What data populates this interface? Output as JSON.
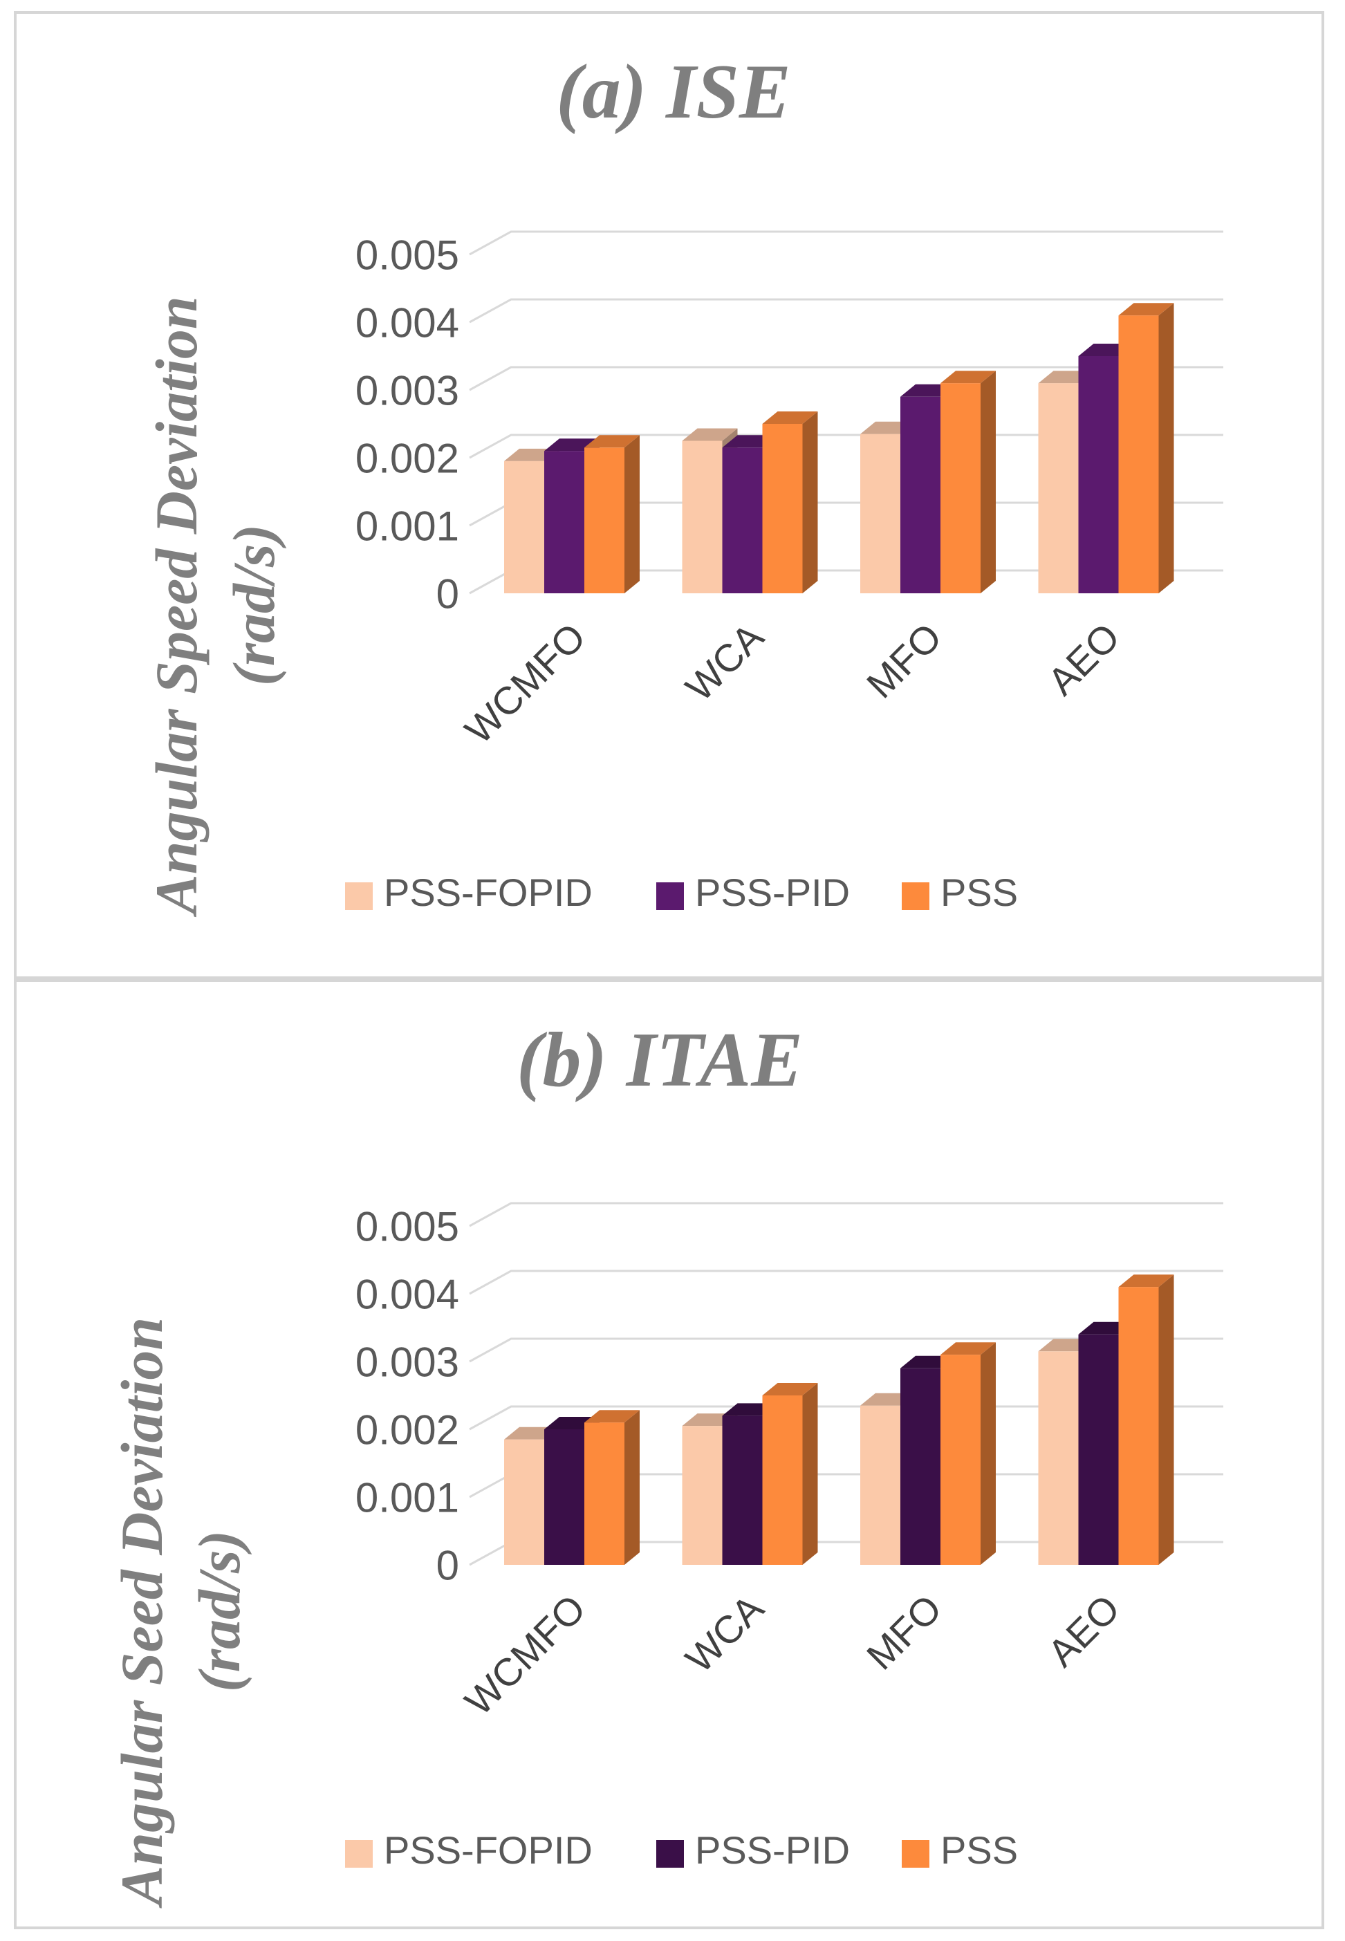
{
  "chart_data": [
    {
      "type": "bar",
      "title": "(a) ISE",
      "ylabel": "Angular Speed Deviation (rad/s)",
      "ylabel_lines": [
        "Angular Speed Deviation",
        "(rad/s)"
      ],
      "categories": [
        "WCMFO",
        "WCA",
        "MFO",
        "AEO"
      ],
      "yticks": [
        "0",
        "0.001",
        "0.002",
        "0.003",
        "0.004",
        "0.005"
      ],
      "ylim": [
        0,
        0.005
      ],
      "grid": true,
      "legend_position": "bottom",
      "series": [
        {
          "name": "PSS-FOPID",
          "color": "#fbc9a9",
          "values": [
            0.00195,
            0.00225,
            0.00235,
            0.0031
          ]
        },
        {
          "name": "PSS-PID",
          "color": "#5b1a6e",
          "values": [
            0.0021,
            0.00215,
            0.0029,
            0.0035
          ]
        },
        {
          "name": "PSS",
          "color": "#fd8a3c",
          "values": [
            0.00215,
            0.0025,
            0.0031,
            0.0041
          ]
        }
      ]
    },
    {
      "type": "bar",
      "title": "(b) ITAE",
      "ylabel": "Angular Seed Deviation (rad/s)",
      "ylabel_lines": [
        "Angular Seed Deviation",
        "(rad/s)"
      ],
      "categories": [
        "WCMFO",
        "WCA",
        "MFO",
        "AEO"
      ],
      "yticks": [
        "0",
        "0.001",
        "0.002",
        "0.003",
        "0.004",
        "0.005"
      ],
      "ylim": [
        0,
        0.005
      ],
      "grid": true,
      "legend_position": "bottom",
      "series": [
        {
          "name": "PSS-FOPID",
          "color": "#fbc9a9",
          "values": [
            0.00185,
            0.00205,
            0.00235,
            0.00315
          ]
        },
        {
          "name": "PSS-PID",
          "color": "#3a0f48",
          "values": [
            0.002,
            0.0022,
            0.0029,
            0.0034
          ]
        },
        {
          "name": "PSS",
          "color": "#fd8a3c",
          "values": [
            0.0021,
            0.0025,
            0.0031,
            0.0041
          ]
        }
      ]
    }
  ]
}
